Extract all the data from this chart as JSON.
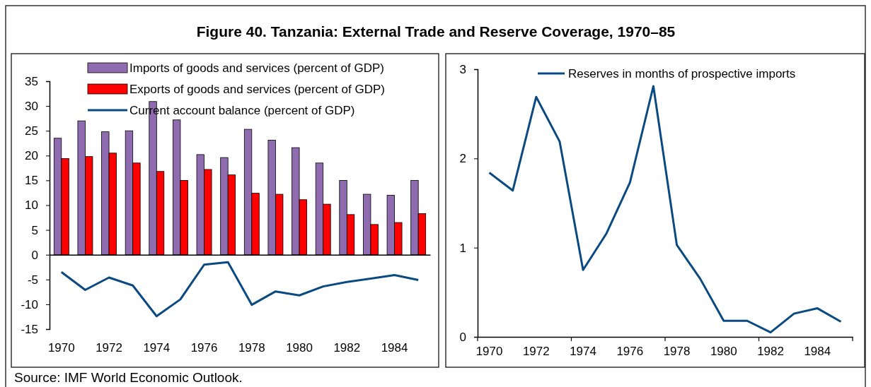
{
  "chart_data": [
    {
      "type": "bar",
      "title": "Figure 40. Tanzania: External Trade and Reserve Coverage, 1970–85",
      "annotations": [
        "Source: IMF World Economic Outlook."
      ],
      "categories": [
        "1970",
        null,
        "1972",
        null,
        "1974",
        null,
        "1976",
        null,
        "1978",
        null,
        "1980",
        null,
        "1982",
        null,
        "1984",
        null
      ],
      "series": [
        {
          "name": "Imports of goods and services (percent of GDP)",
          "color": "#8f6bb0",
          "values": [
            23.5,
            27.0,
            24.8,
            25.0,
            30.9,
            27.2,
            20.2,
            19.6,
            25.3,
            23.1,
            21.6,
            18.5,
            15.0,
            12.2,
            12.0,
            15.0
          ]
        },
        {
          "name": "Exports of goods and services (percent of GDP)",
          "color": "#ff0000",
          "values": [
            19.4,
            19.8,
            20.5,
            18.5,
            16.8,
            15.0,
            17.2,
            16.1,
            12.4,
            12.2,
            11.1,
            10.2,
            8.1,
            6.1,
            6.5,
            8.3
          ]
        },
        {
          "name": "Current account balance (percent of GDP)",
          "type": "line",
          "color": "#0b4a80",
          "values": [
            -3.5,
            -7.1,
            -4.6,
            -6.2,
            -12.4,
            -9.0,
            -2.0,
            -1.5,
            -10.1,
            -7.4,
            -8.2,
            -6.4,
            -5.5,
            -4.8,
            -4.1,
            -5.1
          ]
        }
      ],
      "ylim": [
        -15,
        35
      ],
      "yticks": [
        -15,
        -10,
        -5,
        0,
        5,
        10,
        15,
        20,
        25,
        30,
        35
      ],
      "legend": "top left"
    },
    {
      "type": "line",
      "categories": [
        "1970",
        null,
        "1972",
        null,
        "1974",
        null,
        "1976",
        null,
        "1978",
        null,
        "1980",
        null,
        "1982",
        null,
        "1984",
        null
      ],
      "series": [
        {
          "name": "Reserves in months of prospective imports",
          "color": "#0b4a80",
          "values": [
            1.84,
            1.64,
            2.69,
            2.19,
            0.75,
            1.16,
            1.73,
            2.81,
            1.03,
            0.65,
            0.18,
            0.18,
            0.05,
            0.26,
            0.32,
            0.17
          ]
        }
      ],
      "ylim": [
        0,
        3
      ],
      "yticks": [
        0,
        1,
        2,
        3
      ],
      "legend": "top"
    }
  ]
}
